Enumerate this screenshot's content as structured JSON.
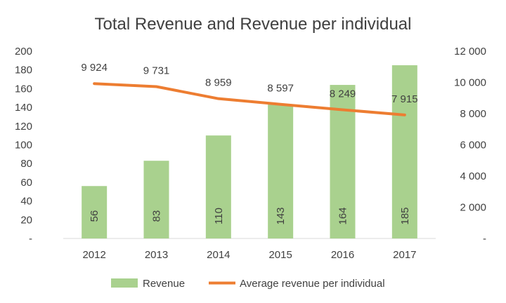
{
  "chart_data": {
    "type": "bar",
    "title": "Total Revenue and Revenue per individual",
    "categories": [
      "2012",
      "2013",
      "2014",
      "2015",
      "2016",
      "2017"
    ],
    "series": [
      {
        "name": "Revenue",
        "type": "bar",
        "axis": "left",
        "values": [
          56,
          83,
          110,
          143,
          164,
          185
        ],
        "labels": [
          "56",
          "83",
          "110",
          "143",
          "164",
          "185"
        ],
        "color": "#a9d18e"
      },
      {
        "name": "Average revenue per individual",
        "type": "line",
        "axis": "right",
        "values": [
          9924,
          9731,
          8959,
          8597,
          8249,
          7915
        ],
        "labels": [
          "9 924",
          "9 731",
          "8 959",
          "8 597",
          "8 249",
          "7 915"
        ],
        "color": "#ed7d31"
      }
    ],
    "y_left": {
      "min": 0,
      "max": 200,
      "ticks": [
        "-",
        "20",
        "40",
        "60",
        "80",
        "100",
        "120",
        "140",
        "160",
        "180",
        "200"
      ]
    },
    "y_right": {
      "min": 0,
      "max": 12000,
      "ticks": [
        "-",
        "2 000",
        "4 000",
        "6 000",
        "8 000",
        "10 000",
        "12 000"
      ]
    },
    "grid": false,
    "legend": "bottom"
  }
}
